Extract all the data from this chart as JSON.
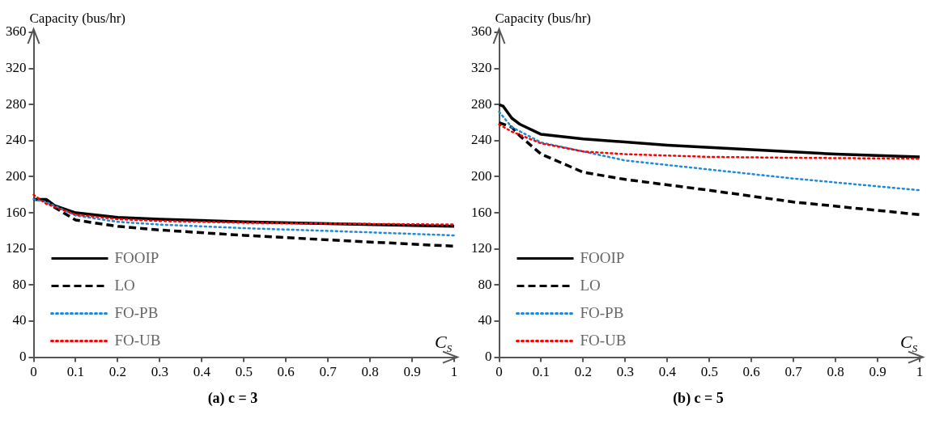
{
  "chart_data": [
    {
      "type": "line",
      "title": "(a)  c = 3",
      "xlabel": "C$_{S}$",
      "ylabel": "Capacity (bus/hr)",
      "xlim": [
        0,
        1
      ],
      "xticks": [
        0,
        0.1,
        0.2,
        0.3,
        0.4,
        0.5,
        0.6,
        0.7,
        0.8,
        0.9,
        1
      ],
      "ylim": [
        0,
        360
      ],
      "yticks": [
        0,
        40,
        80,
        120,
        160,
        200,
        240,
        280,
        320,
        360
      ],
      "grid": false,
      "legend": "bottom left",
      "marker": "none",
      "series": [
        {
          "name": "FOOIP",
          "color": "#000000",
          "line_style": "solid",
          "x": [
            0,
            0.03,
            0.05,
            0.1,
            0.2,
            0.3,
            0.5,
            0.7,
            1
          ],
          "values": [
            175,
            175,
            168,
            160,
            155,
            153,
            150,
            148,
            145
          ]
        },
        {
          "name": "LO",
          "color": "#000000",
          "line_style": "dashed",
          "x": [
            0,
            0.03,
            0.05,
            0.1,
            0.2,
            0.3,
            0.5,
            0.7,
            1
          ],
          "values": [
            175,
            174,
            166,
            152,
            145,
            141,
            135,
            130,
            123
          ]
        },
        {
          "name": "FO-PB",
          "color": "#1f8ad8",
          "line_style": "dotted",
          "x": [
            0,
            0.03,
            0.1,
            0.2,
            0.3,
            0.5,
            0.7,
            1
          ],
          "values": [
            175,
            172,
            157,
            150,
            147,
            143,
            140,
            135
          ]
        },
        {
          "name": "FO-UB",
          "color": "#ff0000",
          "line_style": "dotted",
          "x": [
            0,
            0.03,
            0.1,
            0.2,
            0.3,
            0.5,
            0.7,
            1
          ],
          "values": [
            180,
            170,
            158,
            153,
            151,
            149,
            148,
            147
          ]
        }
      ]
    },
    {
      "type": "line",
      "title": "(b)  c = 5",
      "xlabel": "C$_{S}$",
      "ylabel": "Capacity (bus/hr)",
      "xlim": [
        0,
        1
      ],
      "xticks": [
        0,
        0.1,
        0.2,
        0.3,
        0.4,
        0.5,
        0.6,
        0.7,
        0.8,
        0.9,
        1
      ],
      "ylim": [
        0,
        360
      ],
      "yticks": [
        0,
        40,
        80,
        120,
        160,
        200,
        240,
        280,
        320,
        360
      ],
      "grid": false,
      "legend": "bottom left",
      "marker": "none",
      "series": [
        {
          "name": "FOOIP",
          "color": "#000000",
          "line_style": "solid",
          "x": [
            0,
            0.01,
            0.03,
            0.05,
            0.1,
            0.2,
            0.4,
            0.6,
            0.8,
            1
          ],
          "values": [
            280,
            278,
            265,
            258,
            247,
            242,
            235,
            230,
            225,
            222
          ]
        },
        {
          "name": "LO",
          "color": "#000000",
          "line_style": "dashed",
          "x": [
            0,
            0.03,
            0.05,
            0.1,
            0.2,
            0.3,
            0.5,
            0.7,
            1
          ],
          "values": [
            260,
            255,
            245,
            225,
            205,
            197,
            185,
            172,
            158
          ]
        },
        {
          "name": "FO-PB",
          "color": "#1f8ad8",
          "line_style": "dotted",
          "x": [
            0,
            0.03,
            0.1,
            0.2,
            0.3,
            0.5,
            0.7,
            1
          ],
          "values": [
            272,
            255,
            238,
            228,
            218,
            208,
            198,
            185
          ]
        },
        {
          "name": "FO-UB",
          "color": "#ff0000",
          "line_style": "dotted",
          "x": [
            0,
            0.03,
            0.1,
            0.2,
            0.3,
            0.5,
            0.7,
            1
          ],
          "values": [
            258,
            250,
            237,
            228,
            225,
            222,
            221,
            220
          ]
        }
      ]
    }
  ]
}
